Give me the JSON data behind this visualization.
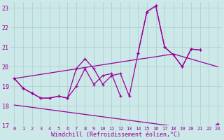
{
  "x": [
    0,
    1,
    2,
    3,
    4,
    5,
    6,
    7,
    8,
    9,
    10,
    11,
    12,
    13,
    14,
    15,
    16,
    17,
    18,
    19,
    20,
    21,
    22,
    23
  ],
  "line1_y": [
    19.4,
    18.9,
    18.65,
    18.4,
    18.4,
    18.5,
    18.4,
    19.9,
    20.4,
    19.9,
    19.1,
    19.55,
    19.65,
    18.5,
    20.7,
    22.8,
    23.1,
    21.0,
    20.6,
    20.0,
    20.9,
    20.85,
    null,
    null
  ],
  "line2_y": [
    19.4,
    18.9,
    18.65,
    18.4,
    18.4,
    18.5,
    18.4,
    19.0,
    19.9,
    19.1,
    19.55,
    19.65,
    18.5,
    null,
    20.7,
    22.8,
    23.1,
    21.0,
    20.6,
    20.0,
    20.9,
    20.85,
    null,
    17.1
  ],
  "smooth1_y": [
    19.4,
    19.47,
    19.54,
    19.61,
    19.68,
    19.75,
    19.82,
    19.89,
    19.96,
    20.03,
    20.1,
    20.17,
    20.24,
    20.31,
    20.38,
    20.44,
    20.51,
    20.58,
    20.65,
    20.52,
    20.39,
    20.26,
    20.13,
    20.0
  ],
  "smooth2_y": [
    18.05,
    17.99,
    17.93,
    17.87,
    17.81,
    17.75,
    17.69,
    17.63,
    17.57,
    17.51,
    17.45,
    17.39,
    17.33,
    17.27,
    17.21,
    17.15,
    17.09,
    17.03,
    16.97,
    16.91,
    16.85,
    16.79,
    16.73,
    17.1
  ],
  "color": "#990099",
  "bg_color": "#cce8e8",
  "grid_color": "#aacccc",
  "xlabel": "Windchill (Refroidissement éolien,°C)",
  "xlim": [
    -0.5,
    23.5
  ],
  "ylim": [
    17.0,
    23.3
  ],
  "yticks": [
    17,
    18,
    19,
    20,
    21,
    22,
    23
  ],
  "xticks": [
    0,
    1,
    2,
    3,
    4,
    5,
    6,
    7,
    8,
    9,
    10,
    11,
    12,
    13,
    14,
    15,
    16,
    17,
    18,
    19,
    20,
    21,
    22,
    23
  ]
}
